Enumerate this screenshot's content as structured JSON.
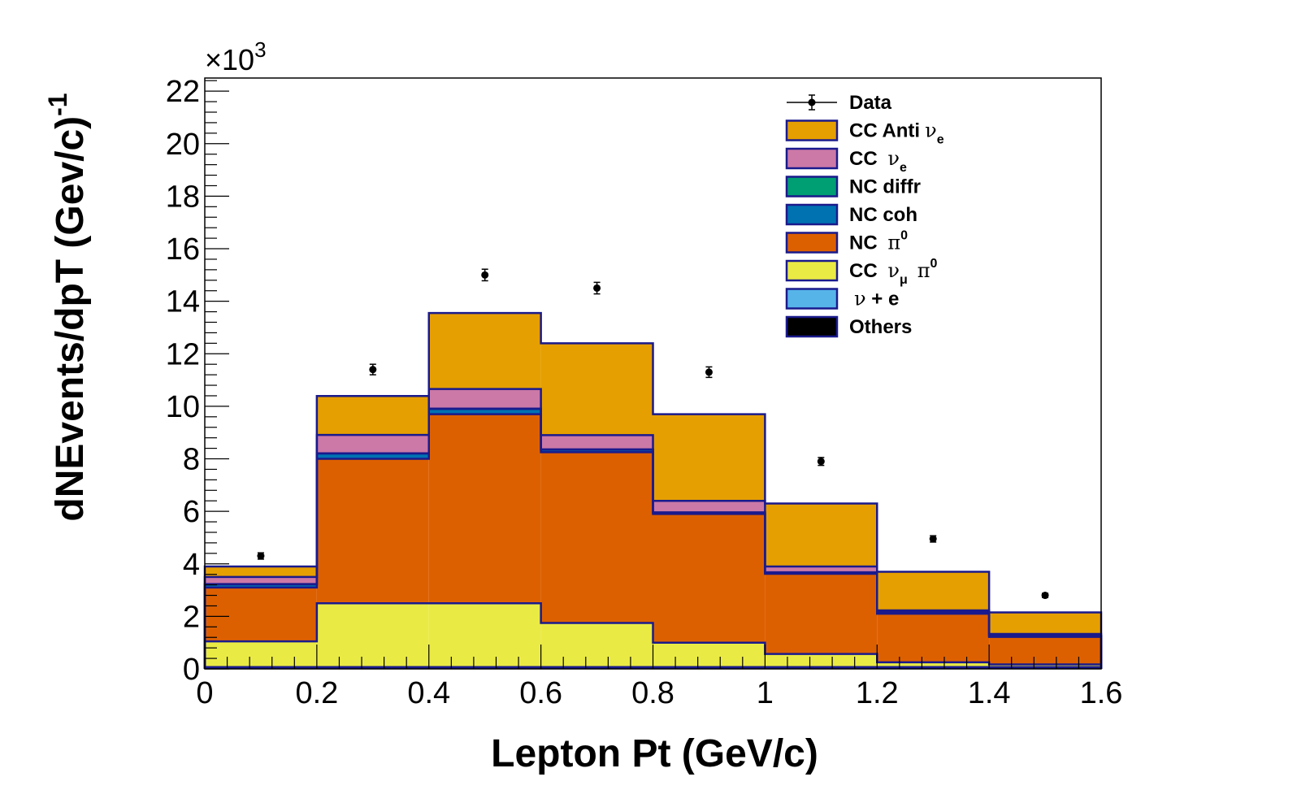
{
  "chart_data": {
    "type": "bar",
    "subtype": "stacked-histogram-with-data-points",
    "title": "",
    "xlabel": "Lepton Pt (GeV/c)",
    "ylabel": "dNEvents/dpT (Gev/c)",
    "ylabel_superscript": "-1",
    "y_multiplier": "×10",
    "y_multiplier_exponent": "3",
    "xlim": [
      0,
      1.6
    ],
    "ylim": [
      0,
      22.5
    ],
    "x_ticks": [
      0,
      0.2,
      0.4,
      0.6,
      0.8,
      1,
      1.2,
      1.4,
      1.6
    ],
    "x_tick_labels": [
      "0",
      "0.2",
      "0.4",
      "0.6",
      "0.8",
      "1",
      "1.2",
      "1.4",
      "1.6"
    ],
    "y_ticks": [
      0,
      2,
      4,
      6,
      8,
      10,
      12,
      14,
      16,
      18,
      20,
      22
    ],
    "y_tick_labels": [
      "0",
      "2",
      "4",
      "6",
      "8",
      "10",
      "12",
      "14",
      "16",
      "18",
      "20",
      "22"
    ],
    "bin_edges": [
      0,
      0.2,
      0.4,
      0.6,
      0.8,
      1.0,
      1.2,
      1.4,
      1.6
    ],
    "categories": [
      "0-0.2",
      "0.2-0.4",
      "0.4-0.6",
      "0.6-0.8",
      "0.8-1.0",
      "1.0-1.2",
      "1.2-1.4",
      "1.4-1.6"
    ],
    "series": [
      {
        "name": "Others",
        "color": "#000000",
        "values": [
          0.05,
          0.05,
          0.05,
          0.05,
          0.05,
          0.05,
          0.05,
          0.05
        ]
      },
      {
        "name": "ν + e",
        "color": "#56b4e9",
        "values": [
          0.02,
          0.02,
          0.02,
          0.02,
          0.02,
          0.02,
          0.02,
          0.02
        ]
      },
      {
        "name": "CC νμ π0",
        "color": "#eaea44",
        "values": [
          0.98,
          2.43,
          2.43,
          1.68,
          0.93,
          0.5,
          0.18,
          0.1
        ]
      },
      {
        "name": "NC π0",
        "color": "#dd6000",
        "values": [
          2.05,
          5.5,
          7.2,
          6.5,
          4.9,
          3.05,
          1.85,
          1.05
        ]
      },
      {
        "name": "NC coh",
        "color": "#0072b2",
        "values": [
          0.12,
          0.2,
          0.2,
          0.1,
          0.05,
          0.05,
          0.05,
          0.03
        ]
      },
      {
        "name": "NC diffr",
        "color": "#009e73",
        "values": [
          0.01,
          0.01,
          0.01,
          0.01,
          0.01,
          0.01,
          0.01,
          0.01
        ]
      },
      {
        "name": "CC νe",
        "color": "#cc79a7",
        "values": [
          0.27,
          0.7,
          0.75,
          0.54,
          0.44,
          0.22,
          0.07,
          0.07
        ]
      },
      {
        "name": "CC Anti νe",
        "color": "#e69f00",
        "values": [
          0.4,
          1.48,
          2.89,
          3.5,
          3.3,
          2.4,
          1.47,
          0.82
        ]
      }
    ],
    "data_points": {
      "name": "Data",
      "x": [
        0.1,
        0.3,
        0.5,
        0.7,
        0.9,
        1.1,
        1.3,
        1.5
      ],
      "y": [
        4.3,
        11.4,
        15.0,
        14.5,
        11.3,
        7.9,
        4.95,
        2.8
      ],
      "yerr": [
        0.12,
        0.2,
        0.22,
        0.22,
        0.2,
        0.15,
        0.12,
        0.08
      ]
    },
    "legend": {
      "position": "top-right",
      "entries": [
        {
          "key": "data",
          "label": "Data"
        },
        {
          "key": "cc_anti_nue",
          "label": "CC Anti",
          "symbol": "ν",
          "sub": "e",
          "sup": "",
          "color": "#e69f00"
        },
        {
          "key": "cc_nue",
          "label": "CC ",
          "symbol": "ν",
          "sub": "e",
          "sup": "",
          "color": "#cc79a7"
        },
        {
          "key": "nc_diffr",
          "label": "NC diffr",
          "symbol": "",
          "sub": "",
          "sup": "",
          "color": "#009e73"
        },
        {
          "key": "nc_coh",
          "label": "NC coh",
          "symbol": "",
          "sub": "",
          "sup": "",
          "color": "#0072b2"
        },
        {
          "key": "nc_pi0",
          "label": "NC ",
          "symbol": "π",
          "sub": "",
          "sup": "0",
          "color": "#dd6000"
        },
        {
          "key": "cc_numu_pi0",
          "label": "CC ",
          "symbol": "ν",
          "sub": "μ",
          "sup": "",
          "tail_symbol": "π",
          "tail_sup": "0",
          "color": "#eaea44"
        },
        {
          "key": "nu_e",
          "label": "",
          "symbol": "ν",
          "tail_text": " + e",
          "sub": "",
          "sup": "",
          "color": "#56b4e9"
        },
        {
          "key": "others",
          "label": "Others",
          "symbol": "",
          "sub": "",
          "sup": "",
          "color": "#000000"
        }
      ]
    },
    "outline_color": "#1a1a8c"
  }
}
